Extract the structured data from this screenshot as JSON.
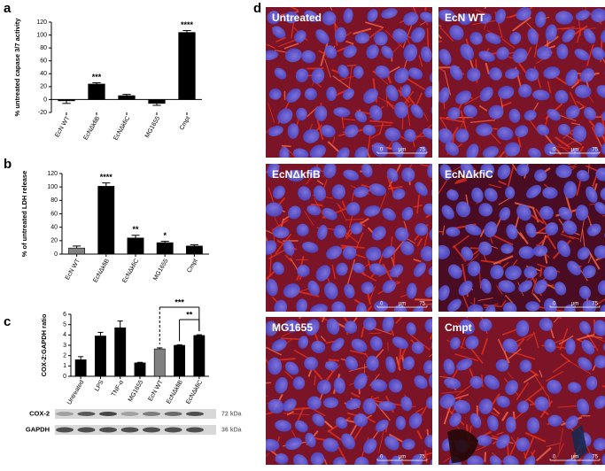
{
  "chart_data": [
    {
      "type": "bar",
      "panel_label": "a",
      "ylabel": "% untreated capase 3/7 activity",
      "categories": [
        "EcN WT",
        "EcNΔkfiB",
        "EcNΔkfiC",
        "MG1655",
        "Cmpt"
      ],
      "values": [
        -2,
        24,
        6,
        -6,
        104
      ],
      "errors": [
        4,
        2,
        2,
        3,
        3
      ],
      "colors": [
        "#000000",
        "#000000",
        "#000000",
        "#000000",
        "#000000"
      ],
      "value_annotations": [
        null,
        "***",
        null,
        null,
        "****"
      ],
      "ylim": [
        -20,
        120
      ],
      "yticks": [
        -20,
        0,
        20,
        40,
        60,
        80,
        100,
        120
      ]
    },
    {
      "type": "bar",
      "panel_label": "b",
      "ylabel": "% of untreated LDH release",
      "categories": [
        "EcN WT",
        "EcNΔkfiB",
        "EcNΔkfiC",
        "MG1655",
        "Cmpt"
      ],
      "values": [
        9,
        101,
        24,
        17,
        12
      ],
      "errors": [
        3,
        5,
        4,
        2,
        2
      ],
      "colors": [
        "#808080",
        "#000000",
        "#000000",
        "#000000",
        "#000000"
      ],
      "value_annotations": [
        null,
        "****",
        "**",
        "*",
        null
      ],
      "ylim": [
        0,
        120
      ],
      "yticks": [
        0,
        20,
        40,
        60,
        80,
        100,
        120
      ]
    },
    {
      "type": "bar",
      "panel_label": "c",
      "ylabel": "COX-2:GAPDH ratio",
      "categories": [
        "Untreated",
        "LPS",
        "TNF-α",
        "MG1655",
        "EcN WT",
        "EcNΔkfiB",
        "EcNΔkfiC"
      ],
      "values": [
        1.6,
        3.9,
        4.7,
        1.3,
        2.65,
        3.0,
        3.95
      ],
      "errors": [
        0.3,
        0.35,
        0.65,
        0.05,
        0.1,
        0.05,
        0.07
      ],
      "colors": [
        "#000000",
        "#000000",
        "#000000",
        "#000000",
        "#808080",
        "#000000",
        "#000000"
      ],
      "brackets": [
        {
          "label": "***",
          "from": "EcN WT",
          "to": "EcNΔkfiC"
        },
        {
          "label": "**",
          "from": "EcNΔkfiB",
          "to": "EcNΔkfiC"
        }
      ],
      "ylim": [
        0,
        6
      ],
      "yticks": [
        0,
        1,
        2,
        3,
        4,
        5,
        6
      ]
    }
  ],
  "blot": {
    "bands": [
      {
        "name": "COX-2",
        "size": "72 kDa"
      },
      {
        "name": "GAPDH",
        "size": "36 kDa"
      }
    ]
  },
  "micrographs": {
    "panel_label": "d",
    "images": [
      {
        "label": "Untreated"
      },
      {
        "label": "EcN WT"
      },
      {
        "label": "EcNΔkfiB"
      },
      {
        "label": "EcNΔkfiC"
      },
      {
        "label": "MG1655"
      },
      {
        "label": "Cmpt"
      }
    ],
    "scale": {
      "start": "0",
      "unit": "µm",
      "end": "75"
    }
  }
}
